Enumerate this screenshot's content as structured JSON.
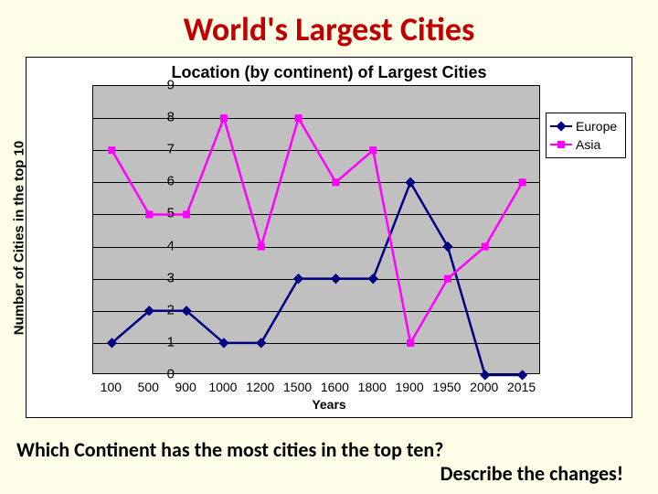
{
  "slide": {
    "title": "World's Largest Cities",
    "title_color": "#c00000",
    "title_fontsize": 36,
    "background": "#fefde8",
    "question_line1": "Which Continent has the most cities in the top ten?",
    "question_line2": "Describe the changes!",
    "question_fontsize": 22
  },
  "chart": {
    "type": "line",
    "title": "Location (by continent) of Largest Cities",
    "title_fontsize": 18,
    "plot_background": "#c0c0c0",
    "frame_background": "#ffffff",
    "grid_color": "#000000",
    "x_axis": {
      "title": "Years",
      "categories": [
        "100",
        "500",
        "900",
        "1000",
        "1200",
        "1500",
        "1600",
        "1800",
        "1900",
        "1950",
        "2000",
        "2015"
      ],
      "label_fontsize": 14
    },
    "y_axis": {
      "title": "Number of Cities in the top 10",
      "min": 0,
      "max": 9,
      "step": 1,
      "label_fontsize": 15
    },
    "series": [
      {
        "name": "Europe",
        "color": "#000080",
        "marker": "diamond",
        "marker_size": 8,
        "line_width": 2.5,
        "values": [
          1,
          2,
          2,
          1,
          1,
          3,
          3,
          3,
          6,
          4,
          0,
          0
        ]
      },
      {
        "name": "Asia",
        "color": "#ff00ff",
        "marker": "square",
        "marker_size": 8,
        "line_width": 2.5,
        "values": [
          7,
          5,
          5,
          8,
          4,
          8,
          6,
          7,
          1,
          3,
          4,
          6
        ]
      }
    ],
    "legend": {
      "position": "right",
      "fontsize": 14
    }
  }
}
